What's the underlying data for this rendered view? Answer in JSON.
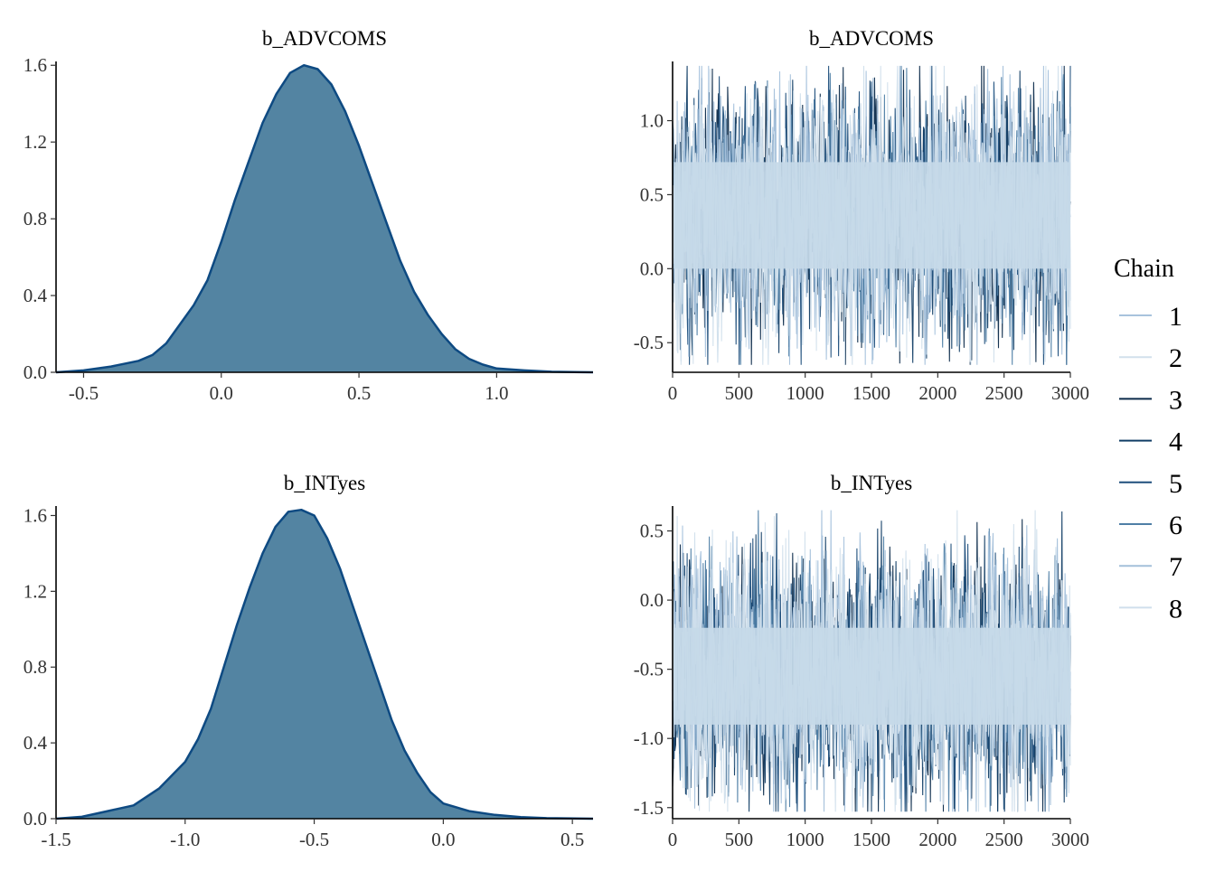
{
  "legend": {
    "title": "Chain",
    "position": "right",
    "entries": [
      {
        "label": "1",
        "color": "#a8c3dd"
      },
      {
        "label": "2",
        "color": "#d2e0ec"
      },
      {
        "label": "3",
        "color": "#0b2a4a"
      },
      {
        "label": "4",
        "color": "#123e66"
      },
      {
        "label": "5",
        "color": "#1f4f7c"
      },
      {
        "label": "6",
        "color": "#4f7fa6"
      },
      {
        "label": "7",
        "color": "#a4c0da"
      },
      {
        "label": "8",
        "color": "#d0dfec"
      }
    ]
  },
  "colors": {
    "density_fill": "#5384a2",
    "density_line": "#0e4a82",
    "trace_band": "#c6d9e8"
  },
  "chart_data": [
    {
      "type": "area",
      "title": "b_ADVCOMS",
      "xlim": [
        -0.6,
        1.35
      ],
      "ylim": [
        0,
        1.62
      ],
      "xticks": [
        "-0.5",
        "0.0",
        "0.5",
        "1.0"
      ],
      "xtick_values": [
        -0.5,
        0.0,
        0.5,
        1.0
      ],
      "yticks": [
        "0.0",
        "0.4",
        "0.8",
        "1.2",
        "1.6"
      ],
      "ytick_values": [
        0.0,
        0.4,
        0.8,
        1.2,
        1.6
      ],
      "x": [
        -0.6,
        -0.5,
        -0.4,
        -0.3,
        -0.25,
        -0.2,
        -0.15,
        -0.1,
        -0.05,
        0.0,
        0.05,
        0.1,
        0.15,
        0.2,
        0.25,
        0.3,
        0.35,
        0.4,
        0.45,
        0.5,
        0.55,
        0.6,
        0.65,
        0.7,
        0.75,
        0.8,
        0.85,
        0.9,
        0.95,
        1.0,
        1.1,
        1.2,
        1.35
      ],
      "y": [
        0.0,
        0.01,
        0.03,
        0.06,
        0.09,
        0.15,
        0.25,
        0.35,
        0.48,
        0.68,
        0.9,
        1.1,
        1.3,
        1.45,
        1.56,
        1.6,
        1.58,
        1.5,
        1.36,
        1.18,
        0.98,
        0.78,
        0.58,
        0.42,
        0.3,
        0.2,
        0.12,
        0.07,
        0.04,
        0.02,
        0.01,
        0.003,
        0.0
      ]
    },
    {
      "type": "line",
      "title": "b_ADVCOMS",
      "xlim": [
        0,
        3000
      ],
      "ylim": [
        -0.7,
        1.4
      ],
      "xticks": [
        "0",
        "500",
        "1000",
        "1500",
        "2000",
        "2500",
        "3000"
      ],
      "xtick_values": [
        0,
        500,
        1000,
        1500,
        2000,
        2500,
        3000
      ],
      "yticks": [
        "-0.5",
        "0.0",
        "0.5",
        "1.0"
      ],
      "ytick_values": [
        -0.5,
        0.0,
        0.5,
        1.0
      ],
      "series_center": 0.36,
      "series_spread": 0.95,
      "band": [
        0.0,
        0.72
      ]
    },
    {
      "type": "area",
      "title": "b_INTyes",
      "xlim": [
        -1.5,
        0.58
      ],
      "ylim": [
        0,
        1.65
      ],
      "xticks": [
        "-1.5",
        "-1.0",
        "-0.5",
        "0.0",
        "0.5"
      ],
      "xtick_values": [
        -1.5,
        -1.0,
        -0.5,
        0.0,
        0.5
      ],
      "yticks": [
        "0.0",
        "0.4",
        "0.8",
        "1.2",
        "1.6"
      ],
      "ytick_values": [
        0.0,
        0.4,
        0.8,
        1.2,
        1.6
      ],
      "x": [
        -1.5,
        -1.4,
        -1.3,
        -1.2,
        -1.1,
        -1.0,
        -0.95,
        -0.9,
        -0.85,
        -0.8,
        -0.75,
        -0.7,
        -0.65,
        -0.6,
        -0.55,
        -0.5,
        -0.45,
        -0.4,
        -0.35,
        -0.3,
        -0.25,
        -0.2,
        -0.15,
        -0.1,
        -0.05,
        0.0,
        0.1,
        0.2,
        0.3,
        0.4,
        0.58
      ],
      "y": [
        0.0,
        0.01,
        0.04,
        0.07,
        0.16,
        0.3,
        0.42,
        0.58,
        0.8,
        1.02,
        1.22,
        1.4,
        1.54,
        1.62,
        1.63,
        1.6,
        1.48,
        1.32,
        1.12,
        0.92,
        0.72,
        0.52,
        0.36,
        0.24,
        0.14,
        0.08,
        0.04,
        0.02,
        0.008,
        0.003,
        0.0
      ]
    },
    {
      "type": "line",
      "title": "b_INTyes",
      "xlim": [
        0,
        3000
      ],
      "ylim": [
        -1.58,
        0.68
      ],
      "xticks": [
        "0",
        "500",
        "1000",
        "1500",
        "2000",
        "2500",
        "3000"
      ],
      "xtick_values": [
        0,
        500,
        1000,
        1500,
        2000,
        2500,
        3000
      ],
      "yticks": [
        "-1.5",
        "-1.0",
        "-0.5",
        "0.0",
        "0.5"
      ],
      "ytick_values": [
        -1.5,
        -1.0,
        -0.5,
        0.0,
        0.5
      ],
      "series_center": -0.55,
      "series_spread": 1.0,
      "band": [
        -0.9,
        -0.2
      ]
    }
  ]
}
